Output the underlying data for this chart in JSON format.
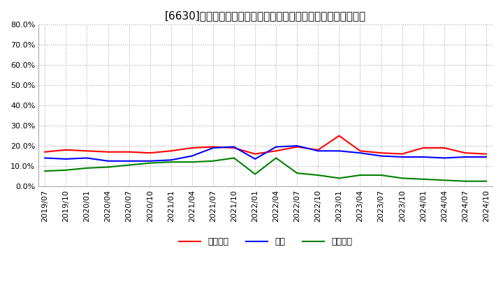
{
  "title": "[6630]　売上債権、在庫、買入債務の総資産に対する比率の推移",
  "ylim": [
    0.0,
    80.0
  ],
  "yticks": [
    0.0,
    10.0,
    20.0,
    30.0,
    40.0,
    50.0,
    60.0,
    70.0,
    80.0
  ],
  "dates": [
    "2019/07",
    "2019/10",
    "2020/01",
    "2020/04",
    "2020/07",
    "2020/10",
    "2021/01",
    "2021/04",
    "2021/07",
    "2021/10",
    "2022/01",
    "2022/04",
    "2022/07",
    "2022/10",
    "2023/01",
    "2023/04",
    "2023/07",
    "2023/10",
    "2024/01",
    "2024/04",
    "2024/07",
    "2024/10"
  ],
  "accounts_receivable": [
    17.0,
    18.0,
    17.5,
    17.0,
    17.0,
    16.5,
    17.5,
    19.0,
    19.5,
    19.0,
    16.0,
    17.5,
    19.5,
    18.0,
    25.0,
    17.5,
    16.5,
    16.0,
    19.0,
    19.0,
    16.5,
    16.0
  ],
  "inventory": [
    14.0,
    13.5,
    14.0,
    12.5,
    12.5,
    12.5,
    13.0,
    15.0,
    19.0,
    19.5,
    13.5,
    19.5,
    20.0,
    17.5,
    17.5,
    16.5,
    15.0,
    14.5,
    14.5,
    14.0,
    14.5,
    14.5
  ],
  "payables": [
    7.5,
    8.0,
    9.0,
    9.5,
    10.5,
    11.5,
    12.0,
    12.0,
    12.5,
    14.0,
    6.0,
    14.0,
    6.5,
    5.5,
    4.0,
    5.5,
    5.5,
    4.0,
    3.5,
    3.0,
    2.5,
    2.5
  ],
  "line_color_ar": "#ff0000",
  "line_color_inv": "#0000ff",
  "line_color_pay": "#008000",
  "legend_labels": [
    "売上債権",
    "在庫",
    "買入債務"
  ],
  "background_color": "#ffffff",
  "plot_bg_color": "#ffffff",
  "grid_color": "#aaaaaa",
  "title_fontsize": 11,
  "tick_fontsize": 8
}
